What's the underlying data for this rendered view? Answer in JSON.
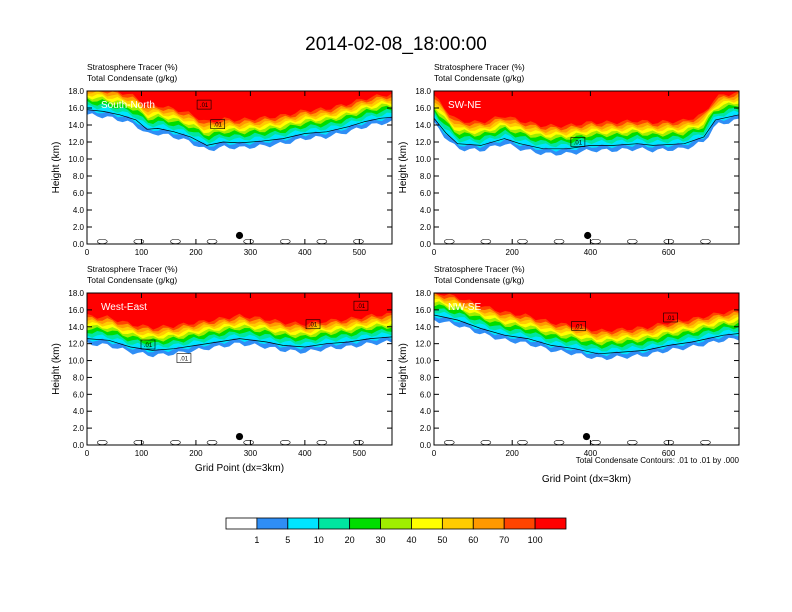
{
  "figure": {
    "title": "2014-02-08_18:00:00",
    "contour_note": "Total Condensate Contours: .01 to .01 by .000",
    "colorbar": {
      "colors": [
        "#ffffff",
        "#2f8ef5",
        "#00e5ff",
        "#00e6a0",
        "#00dd00",
        "#a0ee00",
        "#ffff00",
        "#ffcc00",
        "#ff9900",
        "#ff4400",
        "#ff0000"
      ],
      "labels": [
        "1",
        "5",
        "10",
        "20",
        "30",
        "40",
        "50",
        "60",
        "70",
        "100"
      ]
    }
  },
  "chart_data": [
    {
      "type": "contour",
      "panel_label": "South-North",
      "title_line1": "Stratosphere Tracer   (%)",
      "title_line2": "Total Condensate   (g/kg)",
      "ylabel": "Height (km)",
      "xlabel": "",
      "xlim": [
        0,
        560
      ],
      "ylim": [
        0,
        18
      ],
      "xticks": [
        "0",
        "100",
        "200",
        "300",
        "400",
        "500"
      ],
      "xtick_values": [
        0,
        100,
        200,
        300,
        400,
        500
      ],
      "yticks": [
        "0.0",
        "2.0",
        "4.0",
        "6.0",
        "8.0",
        "10.0",
        "12.0",
        "14.0",
        "16.0",
        "18.0"
      ],
      "marker": {
        "x": 280,
        "y": 1.0
      },
      "contour_labels": [
        {
          "x": 215,
          "y": 16.4,
          "text": ".01"
        },
        {
          "x": 240,
          "y": 14.1,
          "text": ".01"
        }
      ],
      "base_boundary": [
        [
          0,
          15.2
        ],
        [
          30,
          15.0
        ],
        [
          60,
          14.6
        ],
        [
          90,
          14.0
        ],
        [
          110,
          12.9
        ],
        [
          130,
          13.0
        ],
        [
          160,
          12.6
        ],
        [
          190,
          12.0
        ],
        [
          220,
          11.0
        ],
        [
          250,
          11.4
        ],
        [
          280,
          11.3
        ],
        [
          320,
          11.5
        ],
        [
          360,
          11.8
        ],
        [
          400,
          12.4
        ],
        [
          440,
          12.6
        ],
        [
          480,
          13.2
        ],
        [
          510,
          13.8
        ],
        [
          540,
          14.2
        ],
        [
          560,
          14.3
        ]
      ]
    },
    {
      "type": "contour",
      "panel_label": "SW-NE",
      "title_line1": "Stratosphere Tracer   (%)",
      "title_line2": "Total Condensate   (g/kg)",
      "ylabel": "Height (km)",
      "xlabel": "",
      "xlim": [
        0,
        780
      ],
      "ylim": [
        0,
        18
      ],
      "xticks": [
        "0",
        "200",
        "400",
        "600"
      ],
      "xtick_values": [
        0,
        200,
        400,
        600
      ],
      "yticks": [
        "0.0",
        "2.0",
        "4.0",
        "6.0",
        "8.0",
        "10.0",
        "12.0",
        "14.0",
        "16.0",
        "18.0"
      ],
      "marker": {
        "x": 393,
        "y": 1.0
      },
      "contour_labels": [
        {
          "x": 368,
          "y": 12.0,
          "text": ".01"
        }
      ],
      "base_boundary": [
        [
          0,
          14.2
        ],
        [
          30,
          12.5
        ],
        [
          60,
          11.2
        ],
        [
          120,
          11.0
        ],
        [
          180,
          11.8
        ],
        [
          220,
          11.2
        ],
        [
          280,
          10.6
        ],
        [
          340,
          10.6
        ],
        [
          400,
          11.0
        ],
        [
          460,
          11.0
        ],
        [
          520,
          11.2
        ],
        [
          560,
          11.0
        ],
        [
          640,
          11.2
        ],
        [
          690,
          12.0
        ],
        [
          720,
          14.0
        ],
        [
          780,
          14.6
        ]
      ]
    },
    {
      "type": "contour",
      "panel_label": "West-East",
      "title_line1": "Stratosphere Tracer   (%)",
      "title_line2": "Total Condensate   (g/kg)",
      "ylabel": "Height (km)",
      "xlabel": "Grid Point (dx=3km)",
      "xlim": [
        0,
        560
      ],
      "ylim": [
        0,
        18
      ],
      "xticks": [
        "0",
        "100",
        "200",
        "300",
        "400",
        "500"
      ],
      "xtick_values": [
        0,
        100,
        200,
        300,
        400,
        500
      ],
      "yticks": [
        "0.0",
        "2.0",
        "4.0",
        "6.0",
        "8.0",
        "10.0",
        "12.0",
        "14.0",
        "16.0",
        "18.0"
      ],
      "marker": {
        "x": 280,
        "y": 1.0
      },
      "contour_labels": [
        {
          "x": 112,
          "y": 11.9,
          "text": ".01"
        },
        {
          "x": 178,
          "y": 10.3,
          "text": ".01"
        },
        {
          "x": 415,
          "y": 14.3,
          "text": ".01"
        },
        {
          "x": 503,
          "y": 16.5,
          "text": ".01"
        }
      ],
      "base_boundary": [
        [
          0,
          12.0
        ],
        [
          40,
          11.8
        ],
        [
          80,
          11.0
        ],
        [
          120,
          10.6
        ],
        [
          160,
          10.8
        ],
        [
          200,
          11.2
        ],
        [
          240,
          11.6
        ],
        [
          280,
          12.0
        ],
        [
          330,
          11.6
        ],
        [
          360,
          11.2
        ],
        [
          400,
          11.0
        ],
        [
          440,
          11.4
        ],
        [
          480,
          11.6
        ],
        [
          520,
          12.0
        ],
        [
          560,
          12.2
        ]
      ]
    },
    {
      "type": "contour",
      "panel_label": "NW-SE",
      "title_line1": "Stratosphere Tracer   (%)",
      "title_line2": "Total Condensate   (g/kg)",
      "ylabel": "Height (km)",
      "xlabel": "Grid Point (dx=3km)",
      "xlim": [
        0,
        780
      ],
      "ylim": [
        0,
        18
      ],
      "xticks": [
        "0",
        "200",
        "400",
        "600"
      ],
      "xtick_values": [
        0,
        200,
        400,
        600
      ],
      "yticks": [
        "0.0",
        "2.0",
        "4.0",
        "6.0",
        "8.0",
        "10.0",
        "12.0",
        "14.0",
        "16.0",
        "18.0"
      ],
      "marker": {
        "x": 390,
        "y": 1.0
      },
      "contour_labels": [
        {
          "x": 370,
          "y": 14.1,
          "text": ".01"
        },
        {
          "x": 605,
          "y": 15.1,
          "text": ".01"
        }
      ],
      "base_boundary": [
        [
          0,
          14.8
        ],
        [
          60,
          14.2
        ],
        [
          120,
          13.2
        ],
        [
          180,
          12.4
        ],
        [
          240,
          12.0
        ],
        [
          300,
          11.2
        ],
        [
          360,
          10.8
        ],
        [
          420,
          10.2
        ],
        [
          480,
          10.4
        ],
        [
          540,
          10.6
        ],
        [
          600,
          11.2
        ],
        [
          660,
          11.6
        ],
        [
          700,
          12.0
        ],
        [
          740,
          12.4
        ],
        [
          780,
          12.6
        ]
      ]
    }
  ]
}
